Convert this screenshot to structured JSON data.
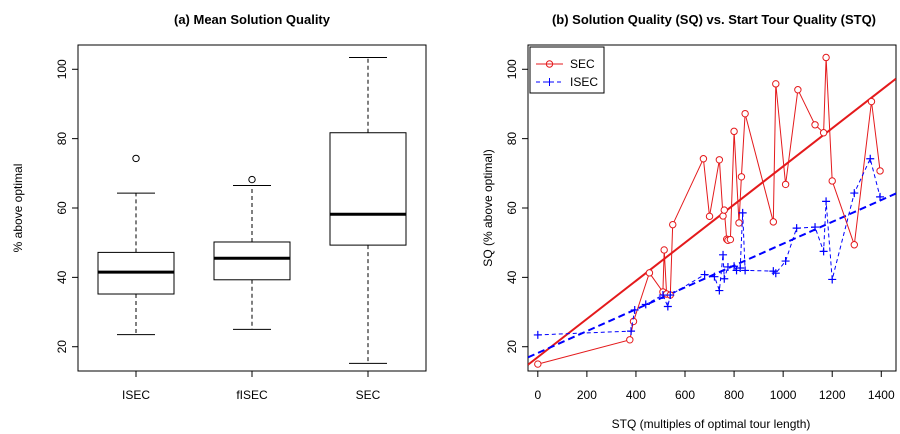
{
  "chart_data": [
    {
      "type": "box",
      "title": "(a) Mean Solution Quality",
      "xlabel": "",
      "ylabel": "% above optimal",
      "ylim": [
        13,
        107
      ],
      "yticks": [
        20,
        40,
        60,
        80,
        100
      ],
      "boxes": [
        {
          "name": "ISEC",
          "whisker_low": 23.5,
          "q1": 35.2,
          "median": 41.5,
          "q3": 47.2,
          "whisker_high": 64.3,
          "outliers": [
            74.3
          ]
        },
        {
          "name": "fISEC",
          "whisker_low": 25.0,
          "q1": 39.3,
          "median": 45.5,
          "q3": 50.2,
          "whisker_high": 66.5,
          "outliers": [
            68.2
          ]
        },
        {
          "name": "SEC",
          "whisker_low": 15.2,
          "q1": 49.3,
          "median": 58.2,
          "q3": 81.7,
          "whisker_high": 103.4,
          "outliers": []
        }
      ],
      "colors": {
        "box": "#000000"
      }
    },
    {
      "type": "scatter",
      "title": "(b) Solution Quality (SQ) vs. Start Tour Quality (STQ)",
      "xlabel": "STQ (multiples of optimal tour length)",
      "ylabel": "SQ (% above optimal)",
      "xlim": [
        -40,
        1460
      ],
      "ylim": [
        13,
        107
      ],
      "xticks": [
        0,
        200,
        400,
        600,
        800,
        1000,
        1200,
        1400
      ],
      "yticks": [
        20,
        40,
        60,
        80,
        100
      ],
      "legend_position": "top-left",
      "series": [
        {
          "name": "SEC",
          "color": "#e41a1c",
          "marker": "circle",
          "line": "solid",
          "x": [
            0,
            375,
            390,
            455,
            510,
            515,
            525,
            540,
            550,
            675,
            700,
            740,
            755,
            760,
            770,
            775,
            785,
            800,
            820,
            830,
            845,
            960,
            970,
            1010,
            1060,
            1130,
            1165,
            1175,
            1200,
            1290,
            1360,
            1395
          ],
          "y": [
            15.0,
            22.0,
            27.3,
            41.3,
            35.8,
            47.9,
            35.2,
            34.9,
            55.2,
            74.2,
            57.6,
            73.9,
            57.7,
            59.4,
            51.0,
            50.7,
            50.9,
            82.1,
            55.7,
            69.0,
            87.2,
            56.0,
            95.8,
            66.8,
            94.1,
            84.0,
            81.7,
            103.4,
            67.8,
            49.4,
            90.7,
            70.7
          ]
        },
        {
          "name": "ISEC",
          "color": "#0000ff",
          "marker": "plus",
          "line": "dashed",
          "x": [
            0,
            380,
            395,
            440,
            510,
            530,
            540,
            680,
            720,
            740,
            755,
            760,
            775,
            800,
            810,
            825,
            835,
            845,
            960,
            970,
            1010,
            1055,
            1130,
            1165,
            1175,
            1200,
            1290,
            1355,
            1395
          ],
          "y": [
            23.4,
            24.5,
            30.6,
            32.2,
            34.9,
            31.6,
            34.9,
            40.8,
            40.2,
            36.2,
            46.5,
            39.6,
            43.0,
            43.2,
            42.0,
            42.7,
            58.6,
            42.0,
            41.8,
            41.2,
            44.7,
            54.2,
            54.5,
            47.5,
            61.9,
            39.4,
            64.3,
            74.2,
            63.2
          ]
        }
      ],
      "fit_lines": [
        {
          "series": "SEC",
          "intercept": 17.0,
          "slope": 0.055,
          "color": "#e41a1c",
          "line": "solid"
        },
        {
          "series": "ISEC",
          "intercept": 18.2,
          "slope": 0.0315,
          "color": "#0000ff",
          "line": "dashed"
        }
      ]
    }
  ]
}
